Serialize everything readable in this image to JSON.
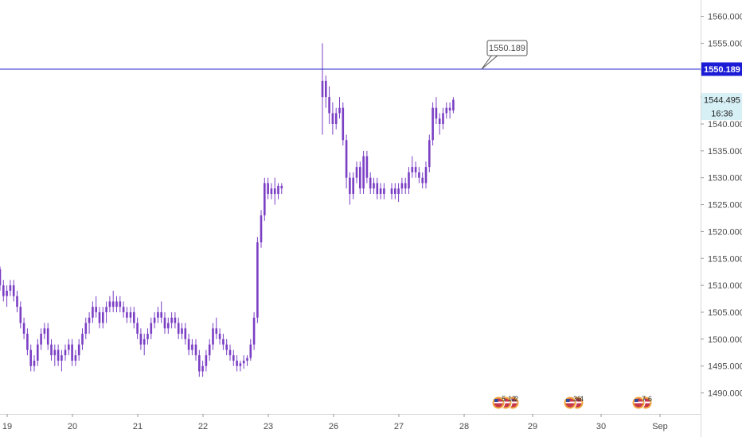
{
  "chart_data": {
    "type": "candlestick",
    "x_tick_labels": [
      "19",
      "20",
      "21",
      "22",
      "23",
      "26",
      "27",
      "28",
      "29",
      "30",
      "Sep"
    ],
    "y_tick_labels": [
      "1560.000",
      "1555.000",
      "1550.000",
      "1545.000",
      "1540.000",
      "1535.000",
      "1530.000",
      "1525.000",
      "1520.000",
      "1515.000",
      "1510.000",
      "1505.000",
      "1500.000",
      "1495.000",
      "1490.000"
    ],
    "y_ticks": [
      1560,
      1555,
      1550,
      1545,
      1540,
      1535,
      1530,
      1525,
      1520,
      1515,
      1510,
      1505,
      1500,
      1495,
      1490
    ],
    "ylim": [
      1488.5,
      1562.5
    ],
    "horizontal_line": {
      "value": 1550.189,
      "label": "1550.189",
      "callout": "1550.189"
    },
    "last_price": {
      "value": 1544.495,
      "label": "1544.495",
      "countdown": "16:36"
    },
    "events": [
      {
        "day": "28",
        "count_label": "5",
        "extra_labels": [
          "12",
          "2"
        ]
      },
      {
        "day": "29",
        "count_label": "36",
        "extra_labels": [
          "4"
        ]
      },
      {
        "day": "30",
        "count_label": "7",
        "extra_labels": [
          "6"
        ]
      }
    ],
    "colors": {
      "candle": "#7b3fc4",
      "line": "#2a2acc",
      "background": "#ffffff",
      "axis_text": "#4a4a4a"
    },
    "series": [
      {
        "day": "19",
        "ohlc": [
          [
            1513,
            1513.5,
            1509,
            1510
          ],
          [
            1510,
            1511,
            1507,
            1508
          ],
          [
            1508,
            1510,
            1506,
            1509
          ],
          [
            1509,
            1511,
            1508,
            1510
          ],
          [
            1510,
            1511,
            1507,
            1508
          ],
          [
            1508,
            1509,
            1505,
            1506
          ],
          [
            1506,
            1507,
            1502,
            1503
          ],
          [
            1503,
            1504,
            1500,
            1501
          ],
          [
            1501,
            1502,
            1497,
            1498
          ],
          [
            1498,
            1499,
            1494,
            1495
          ],
          [
            1495,
            1497,
            1494,
            1496
          ],
          [
            1496,
            1500,
            1495,
            1499
          ],
          [
            1499,
            1502,
            1498,
            1501
          ],
          [
            1501,
            1503,
            1500,
            1502
          ],
          [
            1502,
            1503,
            1498,
            1499
          ],
          [
            1499,
            1500,
            1496,
            1497
          ],
          [
            1497,
            1499,
            1495,
            1498
          ],
          [
            1498,
            1499,
            1495,
            1496
          ],
          [
            1496,
            1498,
            1494,
            1497
          ]
        ]
      },
      {
        "day": "20",
        "ohlc": [
          [
            1497,
            1499,
            1496,
            1498
          ],
          [
            1498,
            1500,
            1497,
            1499
          ],
          [
            1499,
            1500,
            1495,
            1496
          ],
          [
            1496,
            1498,
            1495,
            1497
          ],
          [
            1497,
            1500,
            1496,
            1499
          ],
          [
            1499,
            1502,
            1498,
            1501
          ],
          [
            1501,
            1504,
            1500,
            1503
          ],
          [
            1503,
            1505,
            1501,
            1504
          ],
          [
            1504,
            1507,
            1503,
            1506
          ],
          [
            1506,
            1508,
            1504,
            1505
          ],
          [
            1505,
            1506,
            1502,
            1503
          ],
          [
            1503,
            1506,
            1502,
            1505
          ],
          [
            1505,
            1507,
            1503,
            1506
          ],
          [
            1506,
            1508,
            1505,
            1507
          ],
          [
            1507,
            1509,
            1505,
            1506
          ],
          [
            1506,
            1508,
            1505,
            1507
          ],
          [
            1507,
            1508,
            1505,
            1506
          ],
          [
            1506,
            1507,
            1504,
            1505
          ],
          [
            1505,
            1506,
            1503,
            1504
          ]
        ]
      },
      {
        "day": "21",
        "ohlc": [
          [
            1504,
            1506,
            1503,
            1505
          ],
          [
            1505,
            1506,
            1502,
            1503
          ],
          [
            1503,
            1504,
            1500,
            1501
          ],
          [
            1501,
            1502,
            1498,
            1499
          ],
          [
            1499,
            1501,
            1497,
            1500
          ],
          [
            1500,
            1502,
            1499,
            1501
          ],
          [
            1501,
            1504,
            1500,
            1503
          ],
          [
            1503,
            1505,
            1502,
            1504
          ],
          [
            1504,
            1506,
            1503,
            1505
          ],
          [
            1505,
            1507,
            1503,
            1504
          ],
          [
            1504,
            1505,
            1501,
            1502
          ],
          [
            1502,
            1504,
            1501,
            1503
          ],
          [
            1503,
            1505,
            1502,
            1504
          ],
          [
            1504,
            1505,
            1502,
            1503
          ],
          [
            1503,
            1504,
            1500,
            1501
          ],
          [
            1501,
            1503,
            1500,
            1502
          ],
          [
            1502,
            1503,
            1499,
            1500
          ],
          [
            1500,
            1501,
            1497,
            1498
          ],
          [
            1498,
            1500,
            1497,
            1499
          ]
        ]
      },
      {
        "day": "22",
        "ohlc": [
          [
            1499,
            1500,
            1496,
            1497
          ],
          [
            1497,
            1498,
            1493,
            1494
          ],
          [
            1494,
            1496,
            1493,
            1495
          ],
          [
            1495,
            1498,
            1494,
            1497
          ],
          [
            1497,
            1500,
            1496,
            1499
          ],
          [
            1499,
            1503,
            1498,
            1502
          ],
          [
            1502,
            1504,
            1500,
            1501
          ],
          [
            1501,
            1502,
            1499,
            1500
          ],
          [
            1500,
            1501,
            1498,
            1499
          ],
          [
            1499,
            1500,
            1497,
            1498
          ],
          [
            1498,
            1499,
            1496,
            1497
          ],
          [
            1497,
            1498,
            1495,
            1496
          ],
          [
            1496,
            1497,
            1494,
            1495
          ],
          [
            1495,
            1496,
            1494,
            1495.5
          ],
          [
            1495.5,
            1497,
            1494.5,
            1496
          ],
          [
            1496,
            1497,
            1495,
            1496.5
          ],
          [
            1496.5,
            1500,
            1496,
            1499
          ],
          [
            1499,
            1505,
            1498,
            1504
          ],
          [
            1504,
            1519,
            1503,
            1518
          ]
        ]
      },
      {
        "day": "23",
        "ohlc": [
          [
            1518,
            1524,
            1517,
            1523
          ],
          [
            1523,
            1530,
            1522,
            1529
          ],
          [
            1529,
            1530,
            1526,
            1527
          ],
          [
            1527,
            1529,
            1526,
            1528
          ],
          [
            1528,
            1530,
            1525,
            1527
          ],
          [
            1527,
            1529,
            1526,
            1528.5
          ],
          [
            1528.5,
            1529,
            1527,
            1528
          ]
        ]
      },
      {
        "day": "26",
        "ohlc": [
          [
            1545,
            1555,
            1538,
            1548
          ],
          [
            1548,
            1549,
            1543,
            1545
          ],
          [
            1545,
            1547,
            1540,
            1542
          ],
          [
            1542,
            1544,
            1538,
            1540
          ],
          [
            1540,
            1543,
            1539,
            1542
          ],
          [
            1542,
            1545,
            1541,
            1543
          ],
          [
            1543,
            1544,
            1536,
            1537
          ],
          [
            1537,
            1538,
            1528,
            1530
          ],
          [
            1530,
            1531,
            1525,
            1527
          ],
          [
            1527,
            1531,
            1526,
            1530
          ],
          [
            1530,
            1533,
            1529,
            1532
          ],
          [
            1532,
            1533,
            1527,
            1528
          ],
          [
            1528,
            1535,
            1527,
            1534
          ],
          [
            1534,
            1535,
            1529,
            1530
          ],
          [
            1530,
            1531,
            1527,
            1528
          ],
          [
            1528,
            1530,
            1527,
            1529
          ],
          [
            1529,
            1530,
            1526,
            1527
          ],
          [
            1527,
            1529,
            1526,
            1528
          ],
          [
            1528,
            1529,
            1526,
            1527
          ]
        ]
      },
      {
        "day": "27",
        "ohlc": [
          [
            1527,
            1529,
            1526,
            1528
          ],
          [
            1528,
            1529,
            1526,
            1527
          ],
          [
            1527,
            1529,
            1525.5,
            1528
          ],
          [
            1528,
            1530,
            1527,
            1529
          ],
          [
            1529,
            1530,
            1527,
            1528
          ],
          [
            1528,
            1532,
            1527,
            1531
          ],
          [
            1531,
            1534,
            1530,
            1532
          ],
          [
            1532,
            1533,
            1530,
            1531
          ],
          [
            1531,
            1532,
            1529,
            1530
          ],
          [
            1530,
            1531,
            1528,
            1529
          ],
          [
            1529,
            1533,
            1528,
            1532
          ],
          [
            1532,
            1538,
            1531,
            1537
          ],
          [
            1537,
            1544,
            1536,
            1543
          ],
          [
            1543,
            1545,
            1540,
            1541
          ],
          [
            1541,
            1542,
            1538,
            1540
          ],
          [
            1540,
            1543,
            1539,
            1542
          ],
          [
            1542,
            1544,
            1541,
            1543
          ],
          [
            1543,
            1544,
            1541,
            1542.5
          ],
          [
            1542.5,
            1545,
            1542,
            1544.495
          ]
        ]
      }
    ]
  }
}
